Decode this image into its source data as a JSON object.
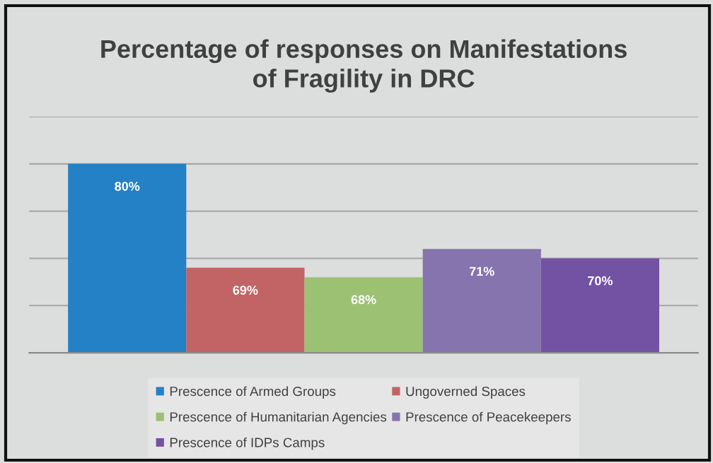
{
  "chart_data": {
    "type": "bar",
    "title": "Percentage of responses on Manifestations\nof Fragility in DRC",
    "categories": [
      null
    ],
    "series": [
      {
        "name": "Prescence of Armed Groups",
        "color": "#2481c6",
        "values": [
          80
        ],
        "value_labels": [
          "80%"
        ]
      },
      {
        "name": "Ungoverned Spaces",
        "color": "#c26465",
        "values": [
          69
        ],
        "value_labels": [
          "69%"
        ]
      },
      {
        "name": "Prescence of Humanitarian Agencies",
        "color": "#9cc173",
        "values": [
          68
        ],
        "value_labels": [
          "68%"
        ]
      },
      {
        "name": "Prescence of Peacekeepers",
        "color": "#8674ae",
        "values": [
          71
        ],
        "value_labels": [
          "71%"
        ]
      },
      {
        "name": "Prescence of IDPs Camps",
        "color": "#7452a3",
        "values": [
          70
        ],
        "value_labels": [
          "70%"
        ]
      }
    ],
    "ylim": [
      60,
      85
    ],
    "yticks": [
      {
        "value": 60,
        "label": null
      },
      {
        "value": 65,
        "label": null
      },
      {
        "value": 70,
        "label": null
      },
      {
        "value": 75,
        "label": null
      },
      {
        "value": 80,
        "label": null
      },
      {
        "value": 85,
        "label": null
      }
    ],
    "grid": "y",
    "legend": "bottom"
  }
}
